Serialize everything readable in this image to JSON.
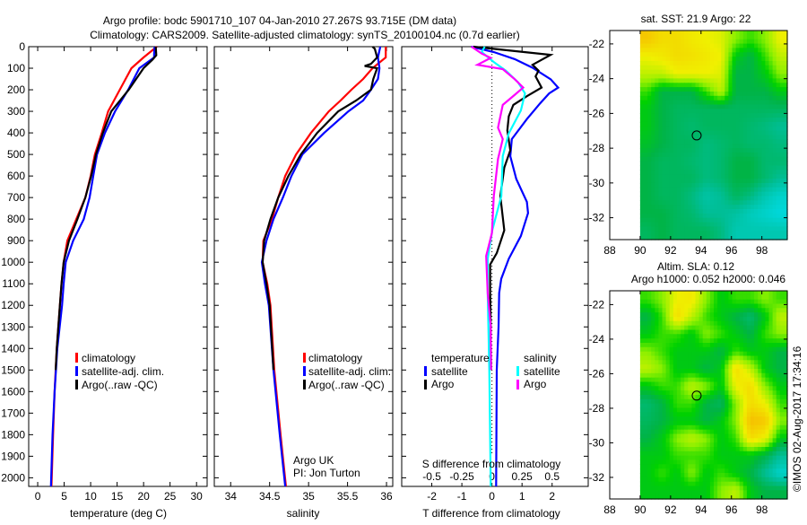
{
  "title": {
    "line1": "Argo profile: bodc 5901710_107 04-Jan-2010 27.267S 93.715E (DM data)",
    "line2": "Climatology: CARS2009. Satellite-adjusted climatology: synTS_20100104.nc (0.7d earlier)"
  },
  "colors": {
    "climatology": "#ff0000",
    "satellite": "#0000ff",
    "argo": "#000000",
    "sal_satellite": "#00ffff",
    "sal_argo": "#ff00ff"
  },
  "chart_data": [
    {
      "type": "line",
      "id": "temperature",
      "xlabel": "temperature (deg C)",
      "ylabel": "",
      "xlim": [
        -1.7,
        32
      ],
      "ylim": [
        2040,
        0
      ],
      "xticks": [
        "0",
        "5",
        "10",
        "15",
        "20",
        "25",
        "30"
      ],
      "xtick_values": [
        0,
        5,
        10,
        15,
        20,
        25,
        30
      ],
      "yticks": [
        "0",
        "100",
        "200",
        "300",
        "400",
        "500",
        "600",
        "700",
        "800",
        "900",
        "1000",
        "1100",
        "1200",
        "1300",
        "1400",
        "1500",
        "1600",
        "1700",
        "1800",
        "1900",
        "2000"
      ],
      "ytick_values": [
        0,
        100,
        200,
        300,
        400,
        500,
        600,
        700,
        800,
        900,
        1000,
        1100,
        1200,
        1300,
        1400,
        1500,
        1600,
        1700,
        1800,
        1900,
        2000
      ],
      "legend": [
        "climatology",
        "satellite-adj. clim.",
        "Argo(..raw -QC)"
      ],
      "legend_placement": "bottom-center",
      "series": [
        {
          "name": "climatology",
          "color": "#ff0000",
          "depth": [
            0,
            50,
            100,
            200,
            300,
            400,
            500,
            600,
            700,
            800,
            900,
            1000,
            1100,
            1200,
            1400,
            1600,
            1800,
            2040
          ],
          "values": [
            22.5,
            20,
            17.7,
            15.5,
            13.3,
            12.1,
            10.8,
            10,
            9,
            7.3,
            5.6,
            4.9,
            4.5,
            4.2,
            3.6,
            3.2,
            2.9,
            2.6
          ]
        },
        {
          "name": "satellite-adj. clim.",
          "color": "#0000ff",
          "depth": [
            0,
            30,
            50,
            100,
            200,
            300,
            400,
            500,
            600,
            700,
            800,
            900,
            1000,
            1100,
            1200,
            1400,
            1600,
            1800,
            2040
          ],
          "values": [
            22.1,
            22,
            22,
            19.2,
            17.1,
            14.6,
            12.7,
            11.2,
            10.5,
            9.8,
            8.7,
            6.7,
            5.3,
            4.9,
            4.6,
            3.7,
            3.2,
            2.8,
            2.5
          ]
        },
        {
          "name": "Argo(..raw -QC)",
          "color": "#000000",
          "depth": [
            0,
            40,
            60,
            100,
            200,
            300,
            400,
            500,
            600,
            700,
            800,
            900,
            1000,
            1100,
            1200,
            1400,
            1500
          ],
          "values": [
            22.3,
            22.4,
            21.7,
            20,
            17.2,
            13.9,
            12.3,
            11,
            10.1,
            9,
            7.5,
            5.9,
            4.9,
            4.5,
            4.2,
            3.6,
            3.4
          ]
        }
      ]
    },
    {
      "type": "line",
      "id": "salinity",
      "xlabel": "salinity",
      "xlim": [
        33.79,
        36.08
      ],
      "ylim": [
        2040,
        0
      ],
      "xticks": [
        "34",
        "34.5",
        "35",
        "35.5",
        "36"
      ],
      "xtick_values": [
        34,
        34.5,
        35,
        35.5,
        36
      ],
      "legend": [
        "climatology",
        "satellite-adj. clim.",
        "Argo(..raw -QC)"
      ],
      "annotation": [
        "Argo UK",
        "PI: Jon Turton"
      ],
      "series": [
        {
          "name": "climatology",
          "color": "#ff0000",
          "depth": [
            0,
            50,
            100,
            150,
            200,
            250,
            300,
            400,
            500,
            600,
            700,
            800,
            900,
            1000,
            1100,
            1200,
            1500,
            1800,
            2040
          ],
          "values": [
            35.99,
            35.99,
            35.82,
            35.7,
            35.55,
            35.41,
            35.26,
            35.03,
            34.84,
            34.7,
            34.61,
            34.53,
            34.42,
            34.41,
            34.47,
            34.51,
            34.56,
            34.64,
            34.71
          ]
        },
        {
          "name": "satellite-adj. clim.",
          "color": "#0000ff",
          "depth": [
            0,
            50,
            100,
            150,
            200,
            250,
            300,
            400,
            500,
            600,
            700,
            800,
            900,
            1000,
            1100,
            1200,
            1500,
            1800,
            2040
          ],
          "values": [
            35.92,
            35.89,
            35.91,
            35.89,
            35.8,
            35.7,
            35.51,
            35.2,
            34.92,
            34.78,
            34.67,
            34.55,
            34.46,
            34.4,
            34.44,
            34.49,
            34.55,
            34.63,
            34.7
          ]
        },
        {
          "name": "Argo(..raw -QC)",
          "color": "#000000",
          "depth": [
            0,
            10,
            50,
            80,
            90,
            100,
            150,
            200,
            250,
            300,
            400,
            500,
            600,
            700,
            800,
            900,
            1000,
            1100,
            1200,
            1500
          ],
          "values": [
            35.82,
            35.85,
            35.88,
            35.8,
            35.72,
            35.88,
            35.83,
            35.8,
            35.61,
            35.38,
            35.11,
            34.9,
            34.74,
            34.61,
            34.51,
            34.43,
            34.41,
            34.46,
            34.5,
            34.55
          ]
        }
      ]
    },
    {
      "type": "line",
      "id": "difference",
      "xlabel": "T difference from climatology",
      "x2label": "S difference from climatology",
      "xlim": [
        -3,
        3.2
      ],
      "x2lim": [
        -0.75,
        0.8
      ],
      "ylim": [
        2040,
        0
      ],
      "xticks": [
        "-2",
        "-1",
        "0",
        "1",
        "2"
      ],
      "xtick_values": [
        -2,
        -1,
        0,
        1,
        2
      ],
      "x2ticks": [
        "-0.5",
        "-0.25",
        "0",
        "0.25",
        "0.5"
      ],
      "x2tick_values": [
        -0.5,
        -0.25,
        0,
        0.25,
        0.5
      ],
      "legend_headers": [
        "temperature",
        "salinity"
      ],
      "legend": [
        "satellite",
        "Argo",
        "satellite",
        "Argo"
      ],
      "series": [
        {
          "name": "T satellite",
          "axis": "T",
          "color": "#0000ff",
          "depth": [
            0,
            25,
            58,
            98,
            151,
            190,
            217,
            263,
            336,
            429,
            508,
            614,
            720,
            772,
            878,
            984,
            1077,
            1143,
            1300,
            1500,
            2040
          ],
          "values": [
            -0.69,
            0.06,
            0.76,
            1.35,
            1.95,
            2.2,
            1.9,
            1.6,
            1.16,
            0.66,
            0.61,
            0.81,
            1.16,
            1.2,
            0.96,
            0.56,
            0.31,
            0.24,
            0.22,
            0.16,
            0.14
          ]
        },
        {
          "name": "T Argo",
          "axis": "T",
          "color": "#000000",
          "depth": [
            0,
            38,
            84,
            111,
            138,
            190,
            230,
            270,
            323,
            389,
            481,
            561,
            693,
            852,
            958,
            1011,
            1143,
            1300,
            1500
          ],
          "values": [
            -0.62,
            1.95,
            1.35,
            1.55,
            1.45,
            1.65,
            1.16,
            0.71,
            0.56,
            0.51,
            0.61,
            0.41,
            0.28,
            0.41,
            0.16,
            -0.06,
            -0.06,
            -0.04,
            -0.03
          ]
        },
        {
          "name": "S satellite",
          "axis": "S",
          "color": "#00ffff",
          "depth": [
            0,
            25,
            71,
            111,
            164,
            217,
            296,
            402,
            508,
            693,
            852,
            984,
            1143,
            1500,
            2040
          ],
          "values": [
            -0.06,
            -0.085,
            0.015,
            0.115,
            0.215,
            0.275,
            0.24,
            0.14,
            0.09,
            0.078,
            0.003,
            -0.035,
            -0.035,
            -0.022,
            -0.01
          ]
        },
        {
          "name": "S Argo",
          "axis": "S",
          "color": "#ff00ff",
          "depth": [
            0,
            32,
            52,
            84,
            104,
            151,
            190,
            223,
            270,
            376,
            429,
            521,
            693,
            865,
            971,
            1143,
            1300,
            1500
          ],
          "values": [
            -0.17,
            -0.085,
            -0.01,
            -0.12,
            0.09,
            0.19,
            0.26,
            0.19,
            0.09,
            0.05,
            0.09,
            0.05,
            0.015,
            0,
            -0.048,
            -0.035,
            -0.01,
            -0.008
          ]
        }
      ]
    },
    {
      "type": "heatmap",
      "id": "sst-map",
      "title": "sat. SST: 21.9 Argo: 22",
      "xlim": [
        88,
        99.67
      ],
      "ylim": [
        -33.26,
        -21.23
      ],
      "xticks": [
        "88",
        "90",
        "92",
        "94",
        "96",
        "98"
      ],
      "xtick_values": [
        88,
        90,
        92,
        94,
        96,
        98
      ],
      "yticks": [
        "-22",
        "-24",
        "-26",
        "-28",
        "-30",
        "-32"
      ],
      "ytick_values": [
        -22,
        -24,
        -26,
        -28,
        -30,
        -32
      ],
      "grid_lon_start": 90,
      "grid_lon_step": 0.967,
      "grid_lat_start": -21.23,
      "grid_lat_step": -1.0,
      "float_position": [
        93.715,
        -27.267
      ],
      "values": [
        [
          0.8,
          0.75,
          0.75,
          0.72,
          0.7,
          0.68,
          0.6,
          0.55,
          0.6,
          0.7
        ],
        [
          0.7,
          0.72,
          0.75,
          0.74,
          0.72,
          0.7,
          0.5,
          0.45,
          0.55,
          0.65
        ],
        [
          0.65,
          0.65,
          0.7,
          0.7,
          0.7,
          0.68,
          0.45,
          0.45,
          0.5,
          0.6
        ],
        [
          0.55,
          0.45,
          0.45,
          0.45,
          0.55,
          0.65,
          0.45,
          0.45,
          0.45,
          0.5
        ],
        [
          0.5,
          0.45,
          0.42,
          0.42,
          0.42,
          0.42,
          0.42,
          0.42,
          0.42,
          0.42
        ],
        [
          0.5,
          0.45,
          0.42,
          0.4,
          0.42,
          0.42,
          0.42,
          0.4,
          0.38,
          0.35
        ],
        [
          0.48,
          0.45,
          0.42,
          0.42,
          0.38,
          0.4,
          0.42,
          0.4,
          0.4,
          0.38
        ],
        [
          0.45,
          0.42,
          0.42,
          0.4,
          0.38,
          0.4,
          0.45,
          0.45,
          0.4,
          0.4
        ],
        [
          0.45,
          0.42,
          0.42,
          0.42,
          0.38,
          0.4,
          0.45,
          0.45,
          0.4,
          0.35
        ],
        [
          0.45,
          0.42,
          0.42,
          0.38,
          0.32,
          0.35,
          0.42,
          0.38,
          0.3,
          0.25
        ],
        [
          0.45,
          0.45,
          0.42,
          0.4,
          0.35,
          0.35,
          0.33,
          0.28,
          0.25,
          0.22
        ],
        [
          0.42,
          0.45,
          0.42,
          0.42,
          0.42,
          0.38,
          0.3,
          0.3,
          0.3,
          0.3
        ]
      ]
    },
    {
      "type": "heatmap",
      "id": "sla-map",
      "title": "Altim. SLA: 0.12",
      "subtitle": "Argo h1000: 0.052 h2000: 0.046",
      "xlim": [
        88,
        99.67
      ],
      "ylim": [
        -33.25,
        -21.2
      ],
      "xticks": [
        "88",
        "90",
        "92",
        "94",
        "96",
        "98"
      ],
      "xtick_values": [
        88,
        90,
        92,
        94,
        96,
        98
      ],
      "yticks": [
        "-22",
        "-24",
        "-26",
        "-28",
        "-30",
        "-32"
      ],
      "ytick_values": [
        -22,
        -24,
        -26,
        -28,
        -30,
        -32
      ],
      "grid_lon_start": 90,
      "grid_lon_step": 0.967,
      "grid_lat_start": -21.2,
      "grid_lat_step": -1.0,
      "float_position": [
        93.715,
        -27.267
      ],
      "values": [
        [
          0.55,
          0.6,
          0.7,
          0.72,
          0.6,
          0.5,
          0.55,
          0.55,
          0.6,
          0.55
        ],
        [
          0.45,
          0.55,
          0.75,
          0.65,
          0.55,
          0.5,
          0.45,
          0.4,
          0.5,
          0.65
        ],
        [
          0.5,
          0.55,
          0.55,
          0.5,
          0.6,
          0.55,
          0.5,
          0.45,
          0.55,
          0.6
        ],
        [
          0.6,
          0.55,
          0.5,
          0.5,
          0.5,
          0.45,
          0.55,
          0.5,
          0.5,
          0.45
        ],
        [
          0.65,
          0.6,
          0.5,
          0.5,
          0.45,
          0.5,
          0.75,
          0.65,
          0.5,
          0.45
        ],
        [
          0.5,
          0.55,
          0.55,
          0.65,
          0.6,
          0.5,
          0.7,
          0.75,
          0.6,
          0.5
        ],
        [
          0.4,
          0.45,
          0.55,
          0.55,
          0.45,
          0.42,
          0.6,
          0.75,
          0.7,
          0.55
        ],
        [
          0.42,
          0.45,
          0.5,
          0.5,
          0.45,
          0.5,
          0.6,
          0.82,
          0.8,
          0.6
        ],
        [
          0.45,
          0.5,
          0.6,
          0.65,
          0.6,
          0.5,
          0.55,
          0.75,
          0.7,
          0.5
        ],
        [
          0.5,
          0.5,
          0.55,
          0.55,
          0.55,
          0.5,
          0.5,
          0.5,
          0.45,
          0.35
        ],
        [
          0.5,
          0.55,
          0.5,
          0.6,
          0.5,
          0.55,
          0.5,
          0.45,
          0.35,
          0.25
        ],
        [
          0.5,
          0.5,
          0.5,
          0.5,
          0.5,
          0.6,
          0.65,
          0.5,
          0.45,
          0.45
        ]
      ]
    }
  ],
  "timestamp": "©IMOS 02-Aug-2017 17:34:16"
}
